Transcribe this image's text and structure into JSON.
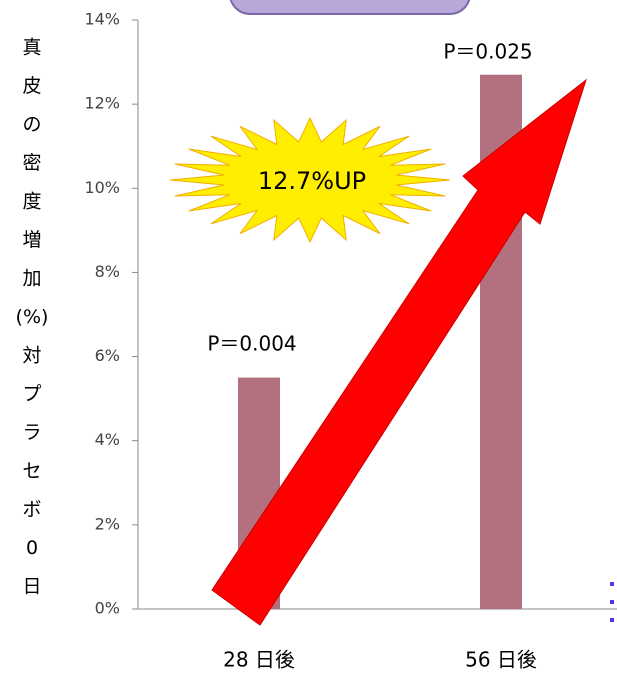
{
  "chart_data": {
    "type": "bar",
    "y_label_lines": [
      "真",
      "皮",
      "の",
      "密",
      "度",
      "増",
      "加",
      "(%)",
      "対",
      "プ",
      "ラ",
      "セ",
      "ボ",
      "0",
      "日"
    ],
    "categories": [
      "28 日後",
      "56 日後"
    ],
    "values": [
      5.5,
      12.7
    ],
    "color": "#b3717f",
    "ylim": [
      0,
      14
    ],
    "yticks": [
      {
        "value": 0,
        "label": "0%"
      },
      {
        "value": 2,
        "label": "2%"
      },
      {
        "value": 4,
        "label": "4%"
      },
      {
        "value": 6,
        "label": "6%"
      },
      {
        "value": 8,
        "label": "8%"
      },
      {
        "value": 10,
        "label": "10%"
      },
      {
        "value": 12,
        "label": "12%"
      },
      {
        "value": 14,
        "label": "14%"
      }
    ],
    "annotations": [
      "P＝0.004",
      "P＝0.025",
      "12.7%UP"
    ]
  }
}
